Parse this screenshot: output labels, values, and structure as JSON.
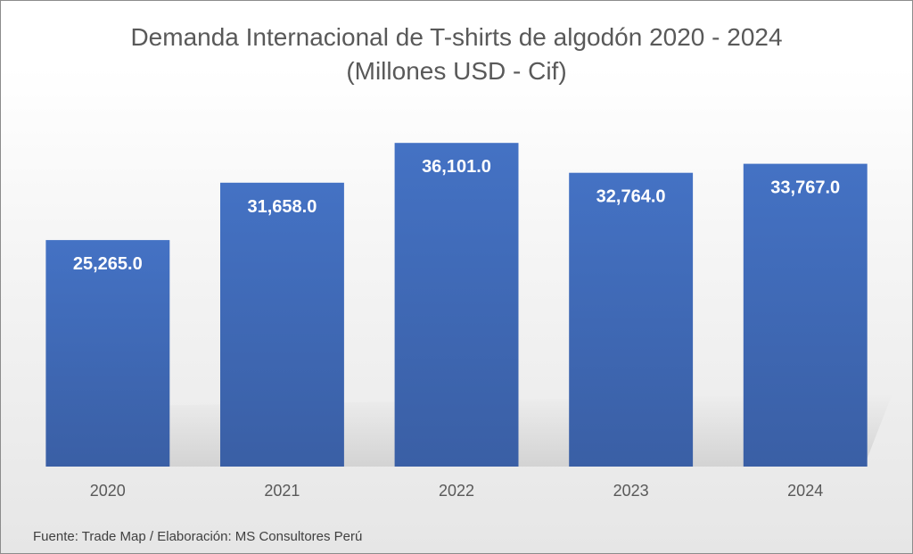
{
  "chart_data": {
    "type": "bar",
    "title": "Demanda Internacional de T-shirts de algodón 2020 - 2024",
    "subtitle": "(Millones USD - Cif)",
    "categories": [
      "2020",
      "2021",
      "2022",
      "2023",
      "2024"
    ],
    "values": [
      25265.0,
      31658.0,
      36101.0,
      32764.0,
      33767.0
    ],
    "data_labels": [
      "25,265.0",
      "31,658.0",
      "36,101.0",
      "32,764.0",
      "33,767.0"
    ],
    "xlabel": "",
    "ylabel": "",
    "ylim": [
      0,
      40000
    ],
    "grid": false,
    "legend": "none",
    "source": "Fuente: Trade Map / Elaboración: MS Consultores Perú",
    "colors": {
      "bar_top": "#4472c4",
      "bar_bottom": "#3a5fa5",
      "label": "#ffffff",
      "axis_text": "#595959"
    }
  }
}
